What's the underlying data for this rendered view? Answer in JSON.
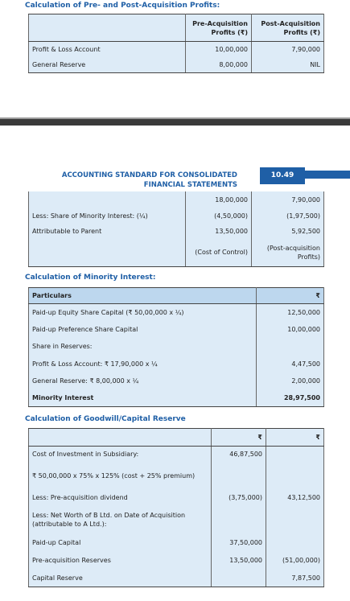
{
  "pre_post": {
    "title": "Calculation of Pre- and Post-Acquisition Profits:",
    "headers": [
      "Pre-Acquisition Profits (₹)",
      "Post-Acquisition Profits (₹)"
    ],
    "rows": [
      {
        "label": "Profit & Loss Account",
        "pre": "10,00,000",
        "post": "7,90,000"
      },
      {
        "label": "General Reserve",
        "pre": "8,00,000",
        "post": "NIL"
      }
    ]
  },
  "page_header": {
    "title": "ACCOUNTING STANDARD FOR CONSOLIDATED FINANCIAL STATEMENTS",
    "page_number": "10.49"
  },
  "continued": {
    "rows": [
      {
        "pre": "18,00,000",
        "post": "7,90,000"
      },
      {
        "label": "Less: Share of Minority Interest: (¼)",
        "pre": "(4,50,000)",
        "post": "(1,97,500)"
      },
      {
        "label": "Attributable to Parent",
        "pre": "13,50,000",
        "post": "5,92,500"
      },
      {
        "pre": "(Cost of Control)",
        "post": "(Post-acquisition Profits)"
      }
    ]
  },
  "minority": {
    "title": "Calculation of Minority Interest:",
    "headers": [
      "Particulars",
      "₹"
    ],
    "rows": [
      {
        "label": "Paid-up Equity Share Capital (₹ 50,00,000 x ¼)",
        "amount": "12,50,000"
      },
      {
        "label": "Paid-up Preference Share Capital",
        "amount": "10,00,000"
      },
      {
        "label": "Share in Reserves:"
      },
      {
        "label": "Profit & Loss Account: ₹ 17,90,000 x ¼",
        "amount": "4,47,500"
      },
      {
        "label": "General Reserve: ₹ 8,00,000 x ¼",
        "amount": "2,00,000"
      },
      {
        "label": "Minority Interest",
        "amount": "28,97,500"
      }
    ]
  },
  "goodwill": {
    "title": "Calculation of Goodwill/Capital Reserve",
    "headers": [
      "₹",
      "₹"
    ],
    "rows": [
      {
        "label": "Cost of Investment in Subsidiary:",
        "col1": "46,87,500"
      },
      {
        "label": "₹ 50,00,000 x 75% x 125% (cost + 25% premium)"
      },
      {
        "label": "Less: Pre-acquisition dividend",
        "col1": "(3,75,000)",
        "col2": "43,12,500"
      },
      {
        "label": "Less: Net Worth of B Ltd. on Date of Acquisition (attributable to A Ltd.):"
      },
      {
        "label": "Paid-up Capital",
        "col1": "37,50,000"
      },
      {
        "label": "Pre-acquisition Reserves",
        "col1": "13,50,000",
        "col2": "(51,00,000)"
      },
      {
        "label": "Capital Reserve",
        "col2": "7,87,500"
      }
    ]
  }
}
